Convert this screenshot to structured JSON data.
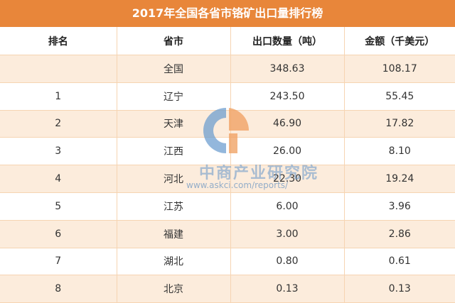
{
  "title": "2017年全国各省市铬矿出口量排行榜",
  "headers": {
    "rank": "排名",
    "region": "省市",
    "quantity": "出口数量（吨）",
    "amount": "金额（千美元）"
  },
  "rows": [
    {
      "rank": "",
      "region": "全国",
      "quantity": "348.63",
      "amount": "108.17"
    },
    {
      "rank": "1",
      "region": "辽宁",
      "quantity": "243.50",
      "amount": "55.45"
    },
    {
      "rank": "2",
      "region": "天津",
      "quantity": "46.90",
      "amount": "17.82"
    },
    {
      "rank": "3",
      "region": "江西",
      "quantity": "26.00",
      "amount": "8.10"
    },
    {
      "rank": "4",
      "region": "河北",
      "quantity": "22.30",
      "amount": "19.24"
    },
    {
      "rank": "5",
      "region": "江苏",
      "quantity": "6.00",
      "amount": "3.96"
    },
    {
      "rank": "6",
      "region": "福建",
      "quantity": "3.00",
      "amount": "2.86"
    },
    {
      "rank": "7",
      "region": "湖北",
      "quantity": "0.80",
      "amount": "0.61"
    },
    {
      "rank": "8",
      "region": "北京",
      "quantity": "0.13",
      "amount": "0.13"
    }
  ],
  "watermark": {
    "name": "中商产业研究院",
    "url": "www.askci.com/reports/"
  },
  "colors": {
    "title_bg": "#e8863a",
    "stripe": "#fcecdc",
    "watermark_blue": "#6a9ccf",
    "watermark_orange": "#f0a060"
  }
}
